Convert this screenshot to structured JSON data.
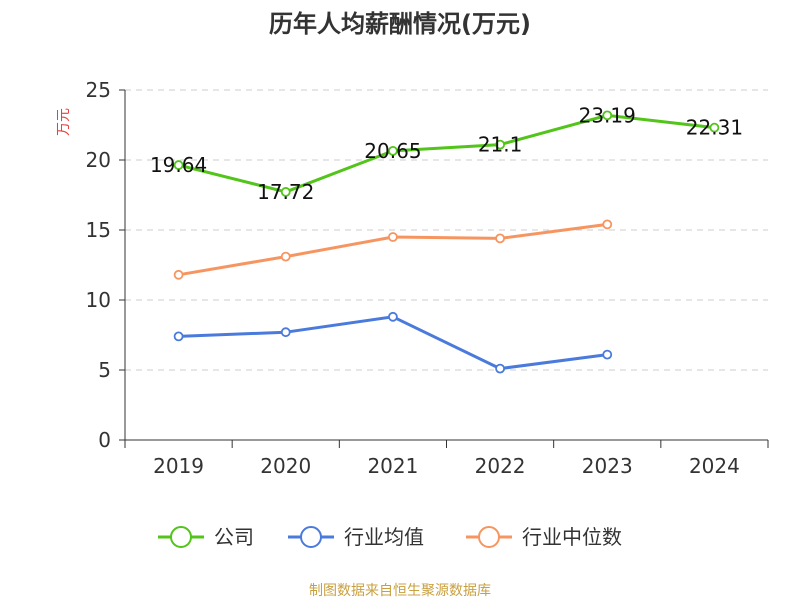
{
  "chart_data": {
    "type": "line",
    "title": "历年人均薪酬情况(万元)",
    "ylabel": "万元",
    "xlabel": "",
    "categories": [
      "2019",
      "2020",
      "2021",
      "2022",
      "2023",
      "2024"
    ],
    "ylim": [
      0,
      25
    ],
    "yticks": [
      0,
      5,
      10,
      15,
      20,
      25
    ],
    "grid": true,
    "legend_position": "bottom",
    "series": [
      {
        "name": "公司",
        "color": "#52c41a",
        "values": [
          19.64,
          17.72,
          20.65,
          21.1,
          23.19,
          22.31
        ],
        "show_labels": true
      },
      {
        "name": "行业均值",
        "color": "#4a7bdc",
        "values": [
          7.4,
          7.7,
          8.8,
          5.1,
          6.1,
          null
        ],
        "show_labels": false
      },
      {
        "name": "行业中位数",
        "color": "#f79560",
        "values": [
          11.8,
          13.1,
          14.5,
          14.4,
          15.4,
          null
        ],
        "show_labels": false
      }
    ]
  },
  "source": "制图数据来自恒生聚源数据库",
  "colors": {
    "ylabel": "#e84040",
    "source": "#c8a040",
    "grid": "#cccccc",
    "axis": "#333333"
  }
}
